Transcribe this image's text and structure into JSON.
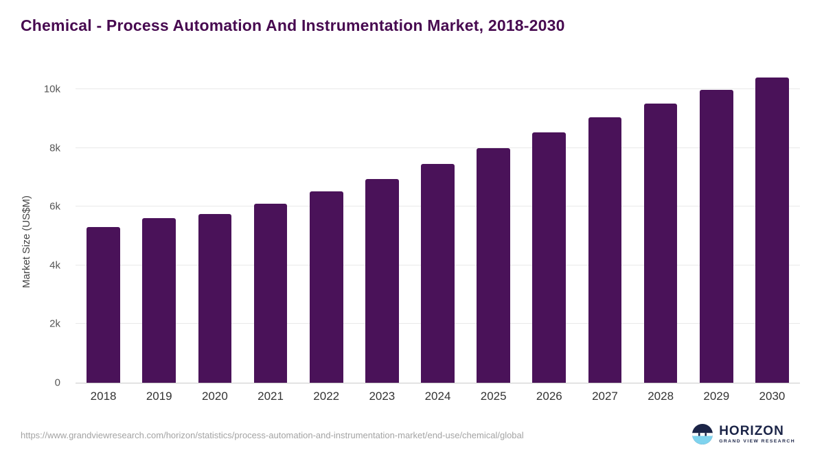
{
  "title": "Chemical - Process Automation And Instrumentation Market, 2018-2030",
  "chart_data": {
    "type": "bar",
    "title": "Chemical - Process Automation And Instrumentation Market, 2018-2030",
    "categories": [
      "2018",
      "2019",
      "2020",
      "2021",
      "2022",
      "2023",
      "2024",
      "2025",
      "2026",
      "2027",
      "2028",
      "2029",
      "2030"
    ],
    "values": [
      5300,
      5600,
      5750,
      6100,
      6520,
      6950,
      7450,
      8000,
      8530,
      9030,
      9510,
      9980,
      10400
    ],
    "xlabel": "",
    "ylabel": "Market Size (US$M)",
    "ylim": [
      0,
      10700
    ],
    "yticks": [
      {
        "value": 0,
        "label": "0"
      },
      {
        "value": 2000,
        "label": "2k"
      },
      {
        "value": 4000,
        "label": "4k"
      },
      {
        "value": 6000,
        "label": "6k"
      },
      {
        "value": 8000,
        "label": "8k"
      },
      {
        "value": 10000,
        "label": "10k"
      }
    ],
    "grid": "horizontal",
    "legend": "none",
    "bar_color": "#4a1259"
  },
  "footer": {
    "source_url": "https://www.grandviewresearch.com/horizon/statistics/process-automation-and-instrumentation-market/end-use/chemical/global",
    "logo": {
      "name": "HORIZON",
      "subtitle": "GRAND VIEW RESEARCH"
    }
  },
  "colors": {
    "bar": "#4a1259",
    "title": "#470a50",
    "logo_navy": "#1b2447",
    "logo_light_blue": "#7fd3ee",
    "gridline": "#e9e9e9"
  }
}
